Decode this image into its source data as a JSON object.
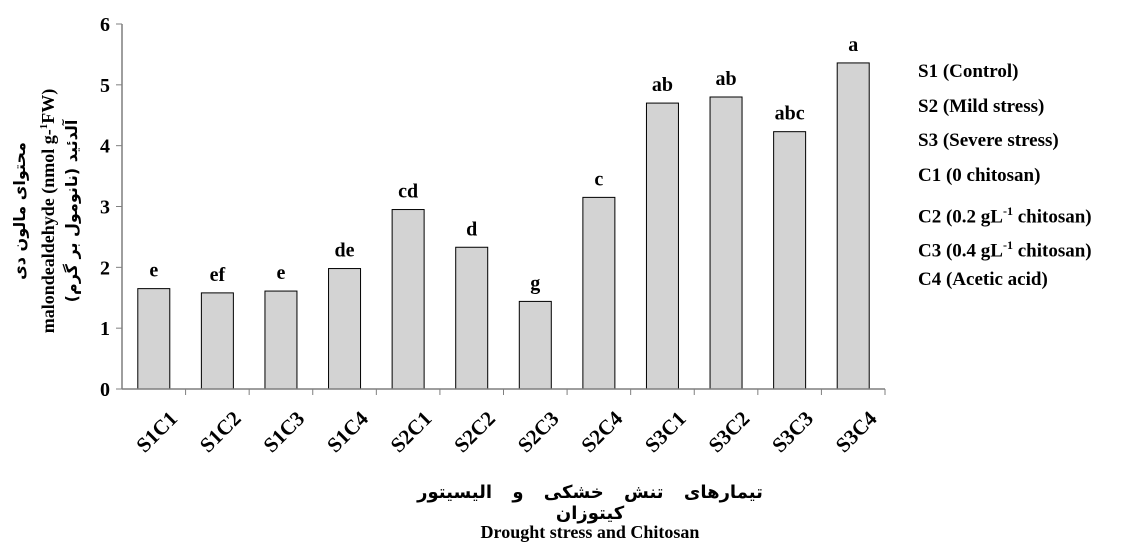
{
  "chart_data": {
    "type": "bar",
    "categories": [
      "S1C1",
      "S1C2",
      "S1C3",
      "S1C4",
      "S2C1",
      "S2C2",
      "S2C3",
      "S2C4",
      "S3C1",
      "S3C2",
      "S3C3",
      "S3C4"
    ],
    "values": [
      1.65,
      1.58,
      1.61,
      1.98,
      2.95,
      2.33,
      1.44,
      3.15,
      4.7,
      4.8,
      4.23,
      5.36
    ],
    "significance_letters": [
      "e",
      "ef",
      "e",
      "de",
      "cd",
      "d",
      "g",
      "c",
      "ab",
      "ab",
      "abc",
      "a"
    ],
    "y_ticks": [
      "0",
      "1",
      "2",
      "3",
      "4",
      "5",
      "6"
    ],
    "ylim": [
      0,
      6
    ],
    "ylabel_fa_line1": "محتوای      مالون       دی",
    "ylabel_fa_line2": "آلدئید (نانومول بر گرم)",
    "ylabel_en_main": "malondealdehyde  (nmol g-",
    "ylabel_en_sup": "1",
    "ylabel_en_tail": "FW)",
    "xlabel_fa": "تیمارهای تنش خشکی و الیسیتور کیتوزان",
    "xlabel_en": "Drought stress and Chitosan",
    "bar_color": "#d3d3d3",
    "bar_stroke": "#000000",
    "grid": false,
    "legend_position": "right",
    "legend": [
      {
        "text": "S1 (Control)"
      },
      {
        "text": "S2 (Mild stress)"
      },
      {
        "text": "S3 (Severe stress)"
      },
      {
        "text": "C1 (0 chitosan)"
      },
      {
        "pre": "C2 (0.2 gL",
        "sup": "-1",
        "post": " chitosan)"
      },
      {
        "pre": "C3 (0.4 gL",
        "sup": "-1",
        "post": " chitosan)"
      },
      {
        "text": "C4 (Acetic acid)"
      }
    ]
  }
}
